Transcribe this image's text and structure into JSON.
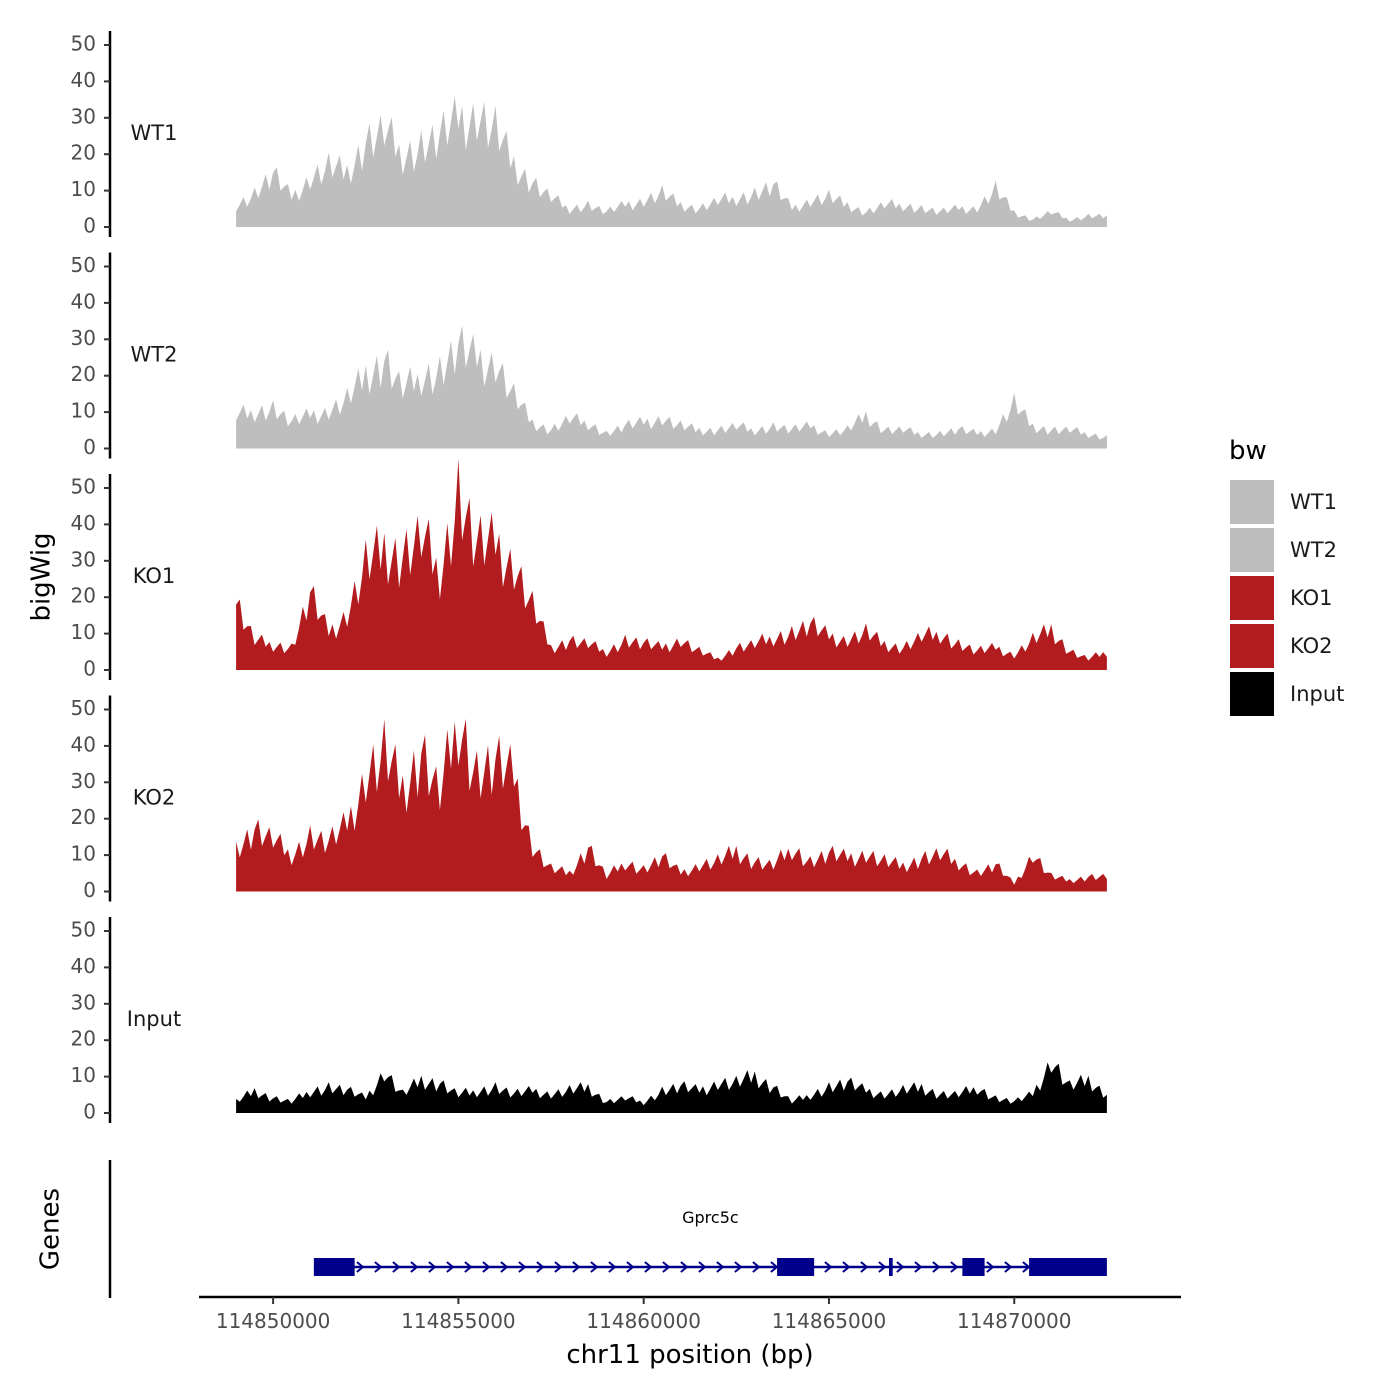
{
  "chart_data": {
    "type": "area",
    "ylabel": "bigWig",
    "xlabel": "chr11 position (bp)",
    "genes_label": "Genes",
    "xlim": [
      114848000,
      114874500
    ],
    "x_ticks": [
      114850000,
      114855000,
      114860000,
      114865000,
      114870000
    ],
    "x_tick_labels": [
      "114850000",
      "114855000",
      "114860000",
      "114865000",
      "114870000"
    ],
    "ylim": [
      0,
      52
    ],
    "y_ticks": [
      0,
      10,
      20,
      30,
      40,
      50
    ],
    "y_tick_labels": [
      "0",
      "10",
      "20",
      "30",
      "40",
      "50"
    ],
    "legend": {
      "title": "bw",
      "items": [
        {
          "label": "WT1",
          "color": "#bebebe"
        },
        {
          "label": "WT2",
          "color": "#bebebe"
        },
        {
          "label": "KO1",
          "color": "#b21c1f"
        },
        {
          "label": "KO2",
          "color": "#b21c1f"
        },
        {
          "label": "Input",
          "color": "#000000"
        }
      ]
    },
    "series": [
      {
        "name": "WT1",
        "color": "#bebebe",
        "x": [
          114849000,
          114849500,
          114850000,
          114850500,
          114851000,
          114851500,
          114852000,
          114852500,
          114853000,
          114853500,
          114854000,
          114854500,
          114855000,
          114855500,
          114856000,
          114856500,
          114857000,
          114857500,
          114858000,
          114858500,
          114859000,
          114859500,
          114860000,
          114860500,
          114861000,
          114861500,
          114862000,
          114862500,
          114863000,
          114863500,
          114864000,
          114864500,
          114865000,
          114865500,
          114866000,
          114866500,
          114867000,
          114867500,
          114868000,
          114868500,
          114869000,
          114869500,
          114870000,
          114870500,
          114871000,
          114871500,
          114872000,
          114872500
        ],
        "values": [
          6,
          9,
          14,
          8,
          13,
          16,
          15,
          23,
          26,
          20,
          22,
          24,
          29,
          30,
          26,
          17,
          12,
          8,
          5,
          6,
          4,
          6,
          7,
          9,
          6,
          5,
          7,
          8,
          9,
          11,
          5,
          7,
          8,
          6,
          4,
          6,
          6,
          5,
          4,
          5,
          5,
          10,
          4,
          2,
          4,
          2,
          3,
          3
        ]
      },
      {
        "name": "WT2",
        "color": "#bebebe",
        "x": [
          114849000,
          114849500,
          114850000,
          114850500,
          114851000,
          114851500,
          114852000,
          114852500,
          114853000,
          114853500,
          114854000,
          114854500,
          114855000,
          114855500,
          114856000,
          114856500,
          114857000,
          114857500,
          114858000,
          114858500,
          114859000,
          114859500,
          114860000,
          114860500,
          114861000,
          114861500,
          114862000,
          114862500,
          114863000,
          114863500,
          114864000,
          114864500,
          114865000,
          114865500,
          114866000,
          114866500,
          114867000,
          114867500,
          114868000,
          114868500,
          114869000,
          114869500,
          114870000,
          114870500,
          114871000,
          114871500,
          114872000,
          114872500
        ],
        "values": [
          9,
          10,
          11,
          7,
          9,
          10,
          13,
          20,
          24,
          16,
          20,
          21,
          27,
          24,
          23,
          14,
          7,
          5,
          8,
          7,
          4,
          6,
          7,
          8,
          6,
          5,
          5,
          6,
          5,
          6,
          5,
          6,
          4,
          5,
          9,
          5,
          5,
          4,
          4,
          5,
          4,
          5,
          12,
          6,
          5,
          5,
          4,
          3
        ]
      },
      {
        "name": "KO1",
        "color": "#b21c1f",
        "x": [
          114849000,
          114849500,
          114850000,
          114850500,
          114851000,
          114851500,
          114852000,
          114852500,
          114853000,
          114853500,
          114854000,
          114854500,
          114855000,
          114855500,
          114856000,
          114856500,
          114857000,
          114857500,
          114858000,
          114858500,
          114859000,
          114859500,
          114860000,
          114860500,
          114861000,
          114861500,
          114862000,
          114862500,
          114863000,
          114863500,
          114864000,
          114864500,
          114865000,
          114865500,
          114866000,
          114866500,
          114867000,
          114867500,
          114868000,
          114868500,
          114869000,
          114869500,
          114870000,
          114870500,
          114871000,
          114871500,
          114872000,
          114872500
        ],
        "values": [
          18,
          8,
          7,
          6,
          20,
          10,
          15,
          28,
          33,
          31,
          36,
          27,
          48,
          33,
          34,
          28,
          17,
          6,
          8,
          7,
          5,
          8,
          7,
          6,
          8,
          5,
          3,
          6,
          7,
          9,
          10,
          12,
          9,
          8,
          10,
          7,
          6,
          9,
          10,
          7,
          5,
          6,
          4,
          8,
          11,
          5,
          3,
          5
        ]
      },
      {
        "name": "KO2",
        "color": "#b21c1f",
        "x": [
          114849000,
          114849500,
          114850000,
          114850500,
          114851000,
          114851500,
          114852000,
          114852500,
          114853000,
          114853500,
          114854000,
          114854500,
          114855000,
          114855500,
          114856000,
          114856500,
          114857000,
          114857500,
          114858000,
          114858500,
          114859000,
          114859500,
          114860000,
          114860500,
          114861000,
          114861500,
          114862000,
          114862500,
          114863000,
          114863500,
          114864000,
          114864500,
          114865000,
          114865500,
          114866000,
          114866500,
          114867000,
          114867500,
          114868000,
          114868500,
          114869000,
          114869500,
          114870000,
          114870500,
          114871000,
          114871500,
          114872000,
          114872500
        ],
        "values": [
          12,
          17,
          14,
          10,
          15,
          13,
          18,
          31,
          37,
          28,
          38,
          26,
          48,
          32,
          34,
          31,
          12,
          6,
          5,
          12,
          4,
          8,
          6,
          9,
          5,
          7,
          8,
          11,
          8,
          7,
          12,
          8,
          10,
          9,
          10,
          8,
          7,
          9,
          10,
          8,
          5,
          7,
          2,
          10,
          4,
          3,
          4,
          4
        ]
      },
      {
        "name": "Input",
        "color": "#000000",
        "x": [
          114849000,
          114849500,
          114850000,
          114850500,
          114851000,
          114851500,
          114852000,
          114852500,
          114853000,
          114853500,
          114854000,
          114854500,
          114855000,
          114855500,
          114856000,
          114856500,
          114857000,
          114857500,
          114858000,
          114858500,
          114859000,
          114859500,
          114860000,
          114860500,
          114861000,
          114861500,
          114862000,
          114862500,
          114863000,
          114863500,
          114864000,
          114864500,
          114865000,
          114865500,
          114866000,
          114866500,
          114867000,
          114867500,
          114868000,
          114868500,
          114869000,
          114869500,
          114870000,
          114870500,
          114871000,
          114871500,
          114872000,
          114872500
        ],
        "values": [
          3,
          6,
          4,
          3,
          6,
          7,
          6,
          4,
          11,
          5,
          9,
          8,
          5,
          6,
          7,
          5,
          6,
          5,
          6,
          7,
          3,
          4,
          3,
          6,
          7,
          6,
          8,
          8,
          10,
          7,
          3,
          5,
          7,
          8,
          6,
          5,
          6,
          7,
          5,
          5,
          7,
          4,
          3,
          5,
          14,
          7,
          9,
          5
        ]
      }
    ],
    "gene": {
      "name": "Gprc5c",
      "strand": "+",
      "start": 114851100,
      "end": 114872500,
      "exons": [
        [
          114851100,
          114852200
        ],
        [
          114863600,
          114864600
        ],
        [
          114866620,
          114866720
        ],
        [
          114868600,
          114869200
        ],
        [
          114870400,
          114872500
        ]
      ]
    }
  }
}
